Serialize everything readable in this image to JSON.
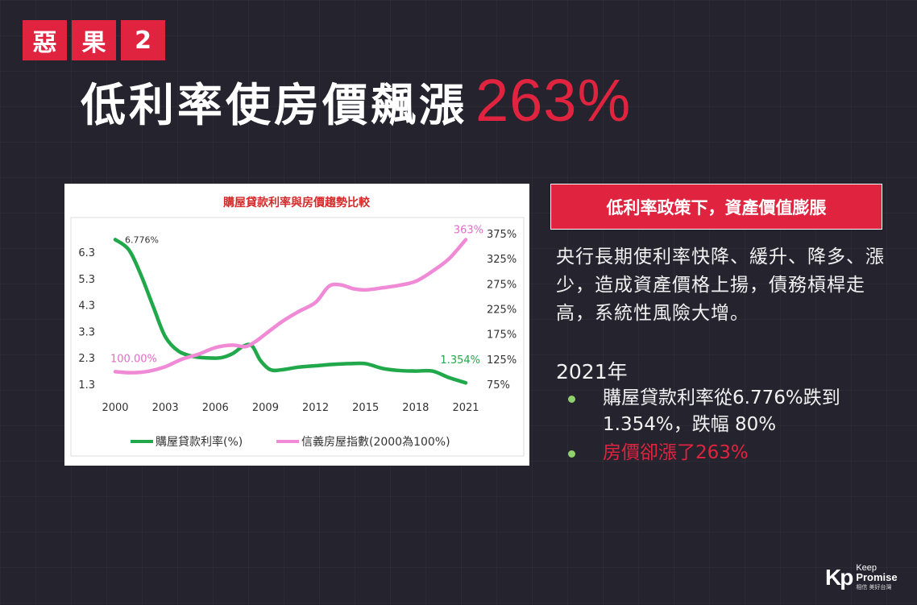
{
  "tags": [
    "惡",
    "果",
    "2"
  ],
  "title": {
    "text": "低利率使房價飆漲",
    "highlight": "263%"
  },
  "chart_data": {
    "type": "line",
    "title": "購屋貸款利率與房價趨勢比較",
    "x_ticks": [
      "2000",
      "2003",
      "2006",
      "2009",
      "2012",
      "2015",
      "2018",
      "2021"
    ],
    "y_left_ticks": [
      "6.3",
      "5.3",
      "4.3",
      "3.3",
      "2.3",
      "1.3"
    ],
    "y_right_ticks": [
      "375%",
      "325%",
      "275%",
      "225%",
      "175%",
      "125%",
      "75%"
    ],
    "ylim_left": [
      1.3,
      6.3
    ],
    "ylim_right": [
      75,
      375
    ],
    "xlim": [
      2000,
      2021
    ],
    "legend_position": "bottom",
    "series": [
      {
        "name": "購屋貸款利率(%)",
        "axis": "left",
        "color": "#20a84a",
        "x": [
          2000,
          2000.8,
          2001.5,
          2002.3,
          2003,
          2003.8,
          2004.7,
          2005.5,
          2006.3,
          2007,
          2007.7,
          2008.2,
          2008.7,
          2009.3,
          2010,
          2011,
          2012,
          2013,
          2014,
          2015,
          2016,
          2017,
          2018,
          2019,
          2020,
          2021
        ],
        "values": [
          6.776,
          6.4,
          5.5,
          4.2,
          3.1,
          2.55,
          2.35,
          2.3,
          2.3,
          2.45,
          2.75,
          2.75,
          2.2,
          1.85,
          1.85,
          1.95,
          2.0,
          2.05,
          2.08,
          2.08,
          1.9,
          1.82,
          1.8,
          1.8,
          1.55,
          1.354
        ],
        "labels": [
          {
            "x": 2000,
            "value": 6.776,
            "text": "6.776%"
          },
          {
            "x": 2021,
            "value": 1.354,
            "text": "1.354%"
          }
        ]
      },
      {
        "name": "信義房屋指數(2000為100%)",
        "axis": "right",
        "color": "#f08ad6",
        "x": [
          2000,
          2001,
          2002,
          2003,
          2004,
          2005,
          2006,
          2007,
          2007.8,
          2008.4,
          2009,
          2010,
          2011,
          2012,
          2012.8,
          2013.5,
          2014.3,
          2015,
          2016,
          2017,
          2018,
          2019,
          2020,
          2021
        ],
        "values": [
          100,
          98,
          101,
          110,
          125,
          135,
          148,
          153,
          150,
          160,
          175,
          200,
          220,
          238,
          270,
          273,
          265,
          263,
          267,
          272,
          280,
          300,
          325,
          363
        ],
        "labels": [
          {
            "x": 2000,
            "value": 100,
            "text": "100.00%"
          },
          {
            "x": 2021,
            "value": 363,
            "text": "363%"
          }
        ]
      }
    ]
  },
  "banner": "低利率政策下，資產價值膨脹",
  "paragraph": "央行長期使利率快降、緩升、降多、漲少，造成資產價格上揚，債務槓桿走高，系統性風險大增。",
  "year": "2021年",
  "bullets": [
    "購屋貸款利率從6.776%跌到1.354%，跌幅 80%",
    "房價卻漲了263%"
  ],
  "logo": {
    "mark": "Kp",
    "line1": "Keep",
    "line2": "Promise",
    "line3": "相信 美好台灣"
  },
  "colors": {
    "accent": "#e0243f",
    "background": "#24232e",
    "bullet": "#8fd16a"
  }
}
